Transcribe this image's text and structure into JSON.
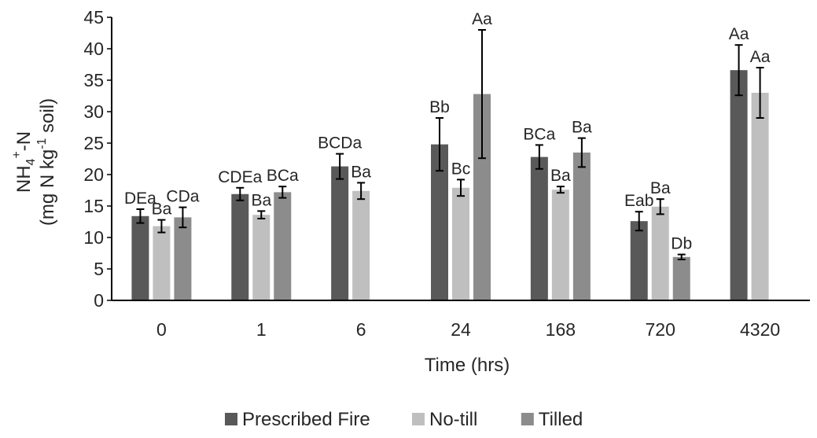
{
  "chart_data": {
    "type": "bar",
    "xlabel": "Time (hrs)",
    "ylabel_line1": "NH",
    "ylabel_sub": "4",
    "ylabel_sup": "+",
    "ylabel_rest": "-N",
    "ylabel_line2_a": "(mg N kg",
    "ylabel_line2_sup": "-1",
    "ylabel_line2_b": " soil)",
    "ylim": [
      0,
      45
    ],
    "yticks": [
      0,
      5,
      10,
      15,
      20,
      25,
      30,
      35,
      40,
      45
    ],
    "categories": [
      "0",
      "1",
      "6",
      "24",
      "168",
      "720",
      "4320"
    ],
    "legend_position": "bottom",
    "series": [
      {
        "name": "Prescribed Fire",
        "color": "#595959",
        "values": [
          13.4,
          16.9,
          21.3,
          24.8,
          22.8,
          12.6,
          36.6
        ],
        "errors": [
          1.1,
          1.0,
          2.0,
          4.2,
          1.9,
          1.5,
          4.0
        ],
        "labels": [
          "DEa",
          "CDEa",
          "BCDa",
          "Bb",
          "BCa",
          "Eab",
          "Aa"
        ]
      },
      {
        "name": "No-till",
        "color": "#bfbfbf",
        "values": [
          11.8,
          13.6,
          17.4,
          17.9,
          17.6,
          14.9,
          33.0
        ],
        "errors": [
          1.0,
          0.6,
          1.3,
          1.3,
          0.5,
          1.2,
          4.0
        ],
        "labels": [
          "Ba",
          "Ba",
          "Ba",
          "Bc",
          "Ba",
          "Ba",
          "Aa"
        ]
      },
      {
        "name": "Tilled",
        "color": "#8c8c8c",
        "values": [
          13.2,
          17.2,
          null,
          32.8,
          23.5,
          6.9,
          null
        ],
        "errors": [
          1.6,
          0.9,
          null,
          10.2,
          2.3,
          0.4,
          null
        ],
        "labels": [
          "CDa",
          "BCa",
          null,
          "Aa",
          "Ba",
          "Db",
          null
        ]
      }
    ]
  }
}
